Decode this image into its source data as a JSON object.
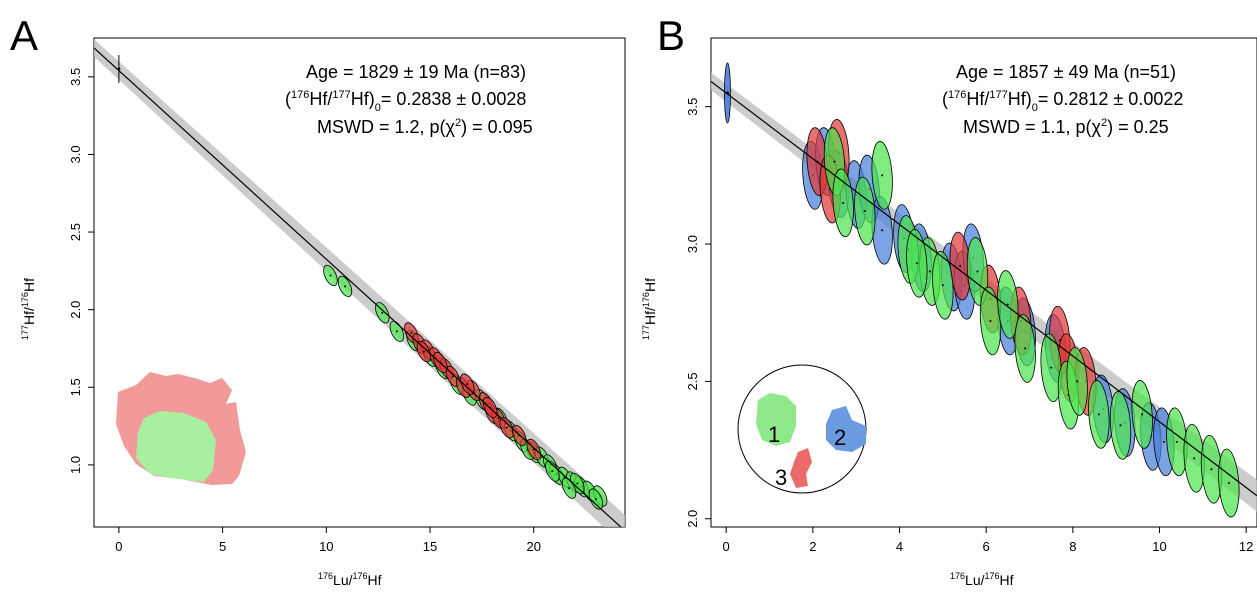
{
  "colors": {
    "green": "#4de44d",
    "red": "#e03a3a",
    "blue": "#4a7fd8",
    "pink_grain": "#f29a9a",
    "green_grain": "#a8f0a0",
    "band": "#bfbfbf"
  },
  "chart_data": [
    {
      "panel_label": "A",
      "type": "scatter",
      "subtype": "isochron-error-ellipses",
      "xlabel": "176Lu/176Hf",
      "ylabel": "177Hf/176Hf",
      "xlim": [
        -1.2,
        24.4
      ],
      "ylim": [
        0.6,
        3.75
      ],
      "xticks": [
        "0",
        "5",
        "10",
        "15",
        "20"
      ],
      "yticks": [
        "1.0",
        "1.5",
        "2.0",
        "2.5",
        "3.0",
        "3.5"
      ],
      "grid": false,
      "annotation": {
        "age": "Age = 1829 ± 19 Ma (n=83)",
        "ratio": "Hf/ Hf) = 0.2838 ± 0.0028",
        "mswd": "MSWD = 1.2, p(χ ) = 0.095"
      },
      "regression": {
        "intercept": 3.54,
        "slope": -0.1215
      },
      "inset_grain": {
        "colors": [
          "pink",
          "green"
        ]
      },
      "series": [
        {
          "color": "green",
          "points": [
            [
              10.2,
              2.22
            ],
            [
              10.9,
              2.15
            ],
            [
              12.7,
              1.98
            ],
            [
              13.4,
              1.86
            ],
            [
              14.2,
              1.8
            ],
            [
              15.0,
              1.7
            ],
            [
              15.6,
              1.62
            ],
            [
              16.3,
              1.52
            ],
            [
              16.9,
              1.45
            ],
            [
              17.5,
              1.42
            ],
            [
              18.4,
              1.3
            ],
            [
              18.9,
              1.22
            ],
            [
              19.4,
              1.15
            ],
            [
              20.0,
              1.08
            ],
            [
              20.4,
              1.05
            ],
            [
              20.8,
              1.0
            ],
            [
              21.1,
              0.94
            ],
            [
              21.5,
              0.92
            ],
            [
              21.9,
              0.89
            ],
            [
              22.3,
              0.86
            ],
            [
              22.7,
              0.83
            ],
            [
              23.2,
              0.8
            ],
            [
              23.0,
              0.78
            ],
            [
              22.1,
              0.88
            ],
            [
              21.7,
              0.85
            ],
            [
              20.9,
              0.96
            ],
            [
              19.7,
              1.1
            ]
          ]
        },
        {
          "color": "red",
          "points": [
            [
              14.1,
              1.85
            ],
            [
              14.5,
              1.78
            ],
            [
              14.9,
              1.74
            ],
            [
              15.3,
              1.69
            ],
            [
              15.8,
              1.62
            ],
            [
              16.1,
              1.57
            ],
            [
              16.6,
              1.5
            ],
            [
              17.1,
              1.48
            ],
            [
              17.7,
              1.4
            ],
            [
              18.0,
              1.33
            ],
            [
              18.3,
              1.3
            ],
            [
              18.7,
              1.24
            ],
            [
              19.3,
              1.19
            ],
            [
              20.0,
              1.1
            ],
            [
              14.7,
              1.73
            ],
            [
              15.5,
              1.66
            ],
            [
              16.8,
              1.52
            ],
            [
              17.9,
              1.37
            ]
          ]
        }
      ],
      "reference_point": [
        0,
        3.55
      ]
    },
    {
      "panel_label": "B",
      "type": "scatter",
      "subtype": "isochron-error-ellipses",
      "xlabel": "176Lu/176Hf",
      "ylabel": "177Hf/176Hf",
      "xlim": [
        -0.35,
        12.25
      ],
      "ylim": [
        1.97,
        3.75
      ],
      "xticks": [
        "0",
        "2",
        "4",
        "6",
        "8",
        "10",
        "12"
      ],
      "yticks": [
        "2.0",
        "2.5",
        "3.0",
        "3.5"
      ],
      "grid": false,
      "annotation": {
        "age": "Age = 1857 ± 49 Ma (n=51)",
        "ratio": "Hf/ Hf) = 0.2812 ± 0.0022",
        "mswd": "MSWD = 1.1, p(χ ) = 0.25"
      },
      "regression": {
        "intercept": 3.55,
        "slope": -0.1197
      },
      "inset_domains": [
        "1",
        "2",
        "3"
      ],
      "series": [
        {
          "color": "blue",
          "points": [
            [
              2.0,
              3.25
            ],
            [
              2.3,
              3.3
            ],
            [
              2.6,
              3.22
            ],
            [
              3.0,
              3.18
            ],
            [
              3.3,
              3.2
            ],
            [
              3.6,
              3.05
            ],
            [
              4.1,
              3.02
            ],
            [
              4.5,
              2.95
            ],
            [
              5.2,
              2.88
            ],
            [
              5.5,
              2.85
            ],
            [
              5.7,
              2.95
            ],
            [
              6.5,
              2.72
            ],
            [
              6.9,
              2.68
            ],
            [
              7.6,
              2.62
            ],
            [
              8.7,
              2.4
            ],
            [
              9.2,
              2.35
            ],
            [
              9.8,
              2.3
            ],
            [
              10.1,
              2.28
            ]
          ]
        },
        {
          "color": "red",
          "points": [
            [
              2.1,
              3.3
            ],
            [
              2.6,
              3.33
            ],
            [
              2.4,
              3.2
            ],
            [
              5.4,
              2.92
            ],
            [
              6.1,
              2.8
            ],
            [
              6.8,
              2.72
            ],
            [
              7.7,
              2.65
            ],
            [
              7.9,
              2.55
            ],
            [
              8.3,
              2.5
            ]
          ]
        },
        {
          "color": "green",
          "points": [
            [
              2.5,
              3.3
            ],
            [
              2.7,
              3.15
            ],
            [
              3.6,
              3.25
            ],
            [
              4.2,
              2.98
            ],
            [
              4.7,
              2.9
            ],
            [
              5.0,
              2.85
            ],
            [
              5.8,
              2.9
            ],
            [
              6.1,
              2.72
            ],
            [
              6.5,
              2.78
            ],
            [
              6.9,
              2.62
            ],
            [
              7.5,
              2.55
            ],
            [
              7.9,
              2.45
            ],
            [
              8.1,
              2.5
            ],
            [
              8.6,
              2.38
            ],
            [
              9.1,
              2.34
            ],
            [
              9.6,
              2.38
            ],
            [
              10.4,
              2.28
            ],
            [
              10.8,
              2.22
            ],
            [
              11.2,
              2.18
            ],
            [
              11.6,
              2.13
            ],
            [
              3.2,
              3.12
            ],
            [
              4.4,
              2.93
            ]
          ]
        }
      ],
      "reference_point": [
        0.03,
        3.55
      ]
    }
  ]
}
